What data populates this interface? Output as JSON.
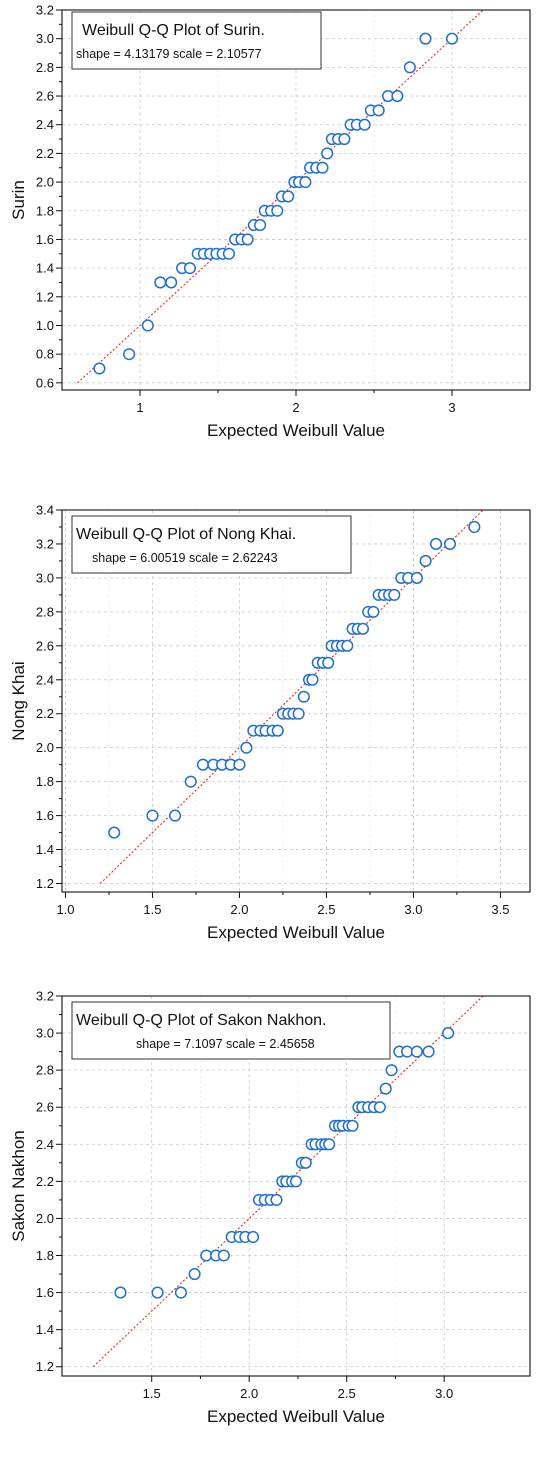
{
  "chart_data": [
    {
      "type": "scatter",
      "title": "Weibull Q-Q Plot of Surin.",
      "subtitle": "shape = 4.13179  scale = 2.10577",
      "xlabel": "Expected Weibull Value",
      "ylabel": "Surin",
      "xlim": [
        0.5,
        3.5
      ],
      "ylim": [
        0.55,
        3.2
      ],
      "xticks": [
        {
          "v": 1,
          "label": "1"
        },
        {
          "v": 2,
          "label": "2"
        },
        {
          "v": 3,
          "label": "3"
        }
      ],
      "yticks": [
        {
          "v": 0.6,
          "label": "0.6"
        },
        {
          "v": 0.8,
          "label": "0.8"
        },
        {
          "v": 1.0,
          "label": "1.0"
        },
        {
          "v": 1.2,
          "label": "1.2"
        },
        {
          "v": 1.4,
          "label": "1.4"
        },
        {
          "v": 1.6,
          "label": "1.6"
        },
        {
          "v": 1.8,
          "label": "1.8"
        },
        {
          "v": 2.0,
          "label": "2.0"
        },
        {
          "v": 2.2,
          "label": "2.2"
        },
        {
          "v": 2.4,
          "label": "2.4"
        },
        {
          "v": 2.6,
          "label": "2.6"
        },
        {
          "v": 2.8,
          "label": "2.8"
        },
        {
          "v": 3.0,
          "label": "3.0"
        },
        {
          "v": 3.2,
          "label": "3.2"
        }
      ],
      "reference_line": [
        [
          0.6,
          0.6
        ],
        [
          3.2,
          3.2
        ]
      ],
      "grid": true,
      "legend": "top-left",
      "x": [
        0.74,
        0.93,
        1.05,
        1.13,
        1.2,
        1.27,
        1.32,
        1.37,
        1.41,
        1.45,
        1.49,
        1.53,
        1.57,
        1.61,
        1.65,
        1.69,
        1.73,
        1.77,
        1.8,
        1.84,
        1.88,
        1.91,
        1.95,
        1.99,
        2.02,
        2.06,
        2.09,
        2.13,
        2.17,
        2.2,
        2.23,
        2.27,
        2.31,
        2.35,
        2.39,
        2.44,
        2.48,
        2.53,
        2.59,
        2.65,
        2.73,
        2.83,
        3.0
      ],
      "y": [
        0.7,
        0.8,
        1.0,
        1.3,
        1.3,
        1.4,
        1.4,
        1.5,
        1.5,
        1.5,
        1.5,
        1.5,
        1.5,
        1.6,
        1.6,
        1.6,
        1.7,
        1.7,
        1.8,
        1.8,
        1.8,
        1.9,
        1.9,
        2.0,
        2.0,
        2.0,
        2.1,
        2.1,
        2.1,
        2.2,
        2.3,
        2.3,
        2.3,
        2.4,
        2.4,
        2.4,
        2.5,
        2.5,
        2.6,
        2.6,
        2.8,
        3.0,
        3.0
      ]
    },
    {
      "type": "scatter",
      "title": "Weibull Q-Q Plot of Nong Khai.",
      "subtitle": "shape = 6.00519  scale = 2.62243",
      "xlabel": "Expected Weibull Value",
      "ylabel": "Nong Khai",
      "xlim": [
        0.98,
        3.67
      ],
      "ylim": [
        1.15,
        3.4
      ],
      "xticks": [
        {
          "v": 1.0,
          "label": "1.0"
        },
        {
          "v": 1.5,
          "label": "1.5"
        },
        {
          "v": 2.0,
          "label": "2.0"
        },
        {
          "v": 2.5,
          "label": "2.5"
        },
        {
          "v": 3.0,
          "label": "3.0"
        },
        {
          "v": 3.5,
          "label": "3.5"
        }
      ],
      "yticks": [
        {
          "v": 1.2,
          "label": "1.2"
        },
        {
          "v": 1.4,
          "label": "1.4"
        },
        {
          "v": 1.6,
          "label": "1.6"
        },
        {
          "v": 1.8,
          "label": "1.8"
        },
        {
          "v": 2.0,
          "label": "2.0"
        },
        {
          "v": 2.2,
          "label": "2.2"
        },
        {
          "v": 2.4,
          "label": "2.4"
        },
        {
          "v": 2.6,
          "label": "2.6"
        },
        {
          "v": 2.8,
          "label": "2.8"
        },
        {
          "v": 3.0,
          "label": "3.0"
        },
        {
          "v": 3.2,
          "label": "3.2"
        },
        {
          "v": 3.4,
          "label": "3.4"
        }
      ],
      "reference_line": [
        [
          1.2,
          1.2
        ],
        [
          3.4,
          3.4
        ]
      ],
      "grid": true,
      "legend": "top-left",
      "x": [
        1.28,
        1.5,
        1.63,
        1.72,
        1.79,
        1.85,
        1.9,
        1.95,
        2.0,
        2.04,
        2.08,
        2.12,
        2.15,
        2.19,
        2.22,
        2.25,
        2.28,
        2.31,
        2.34,
        2.37,
        2.4,
        2.42,
        2.45,
        2.48,
        2.51,
        2.53,
        2.56,
        2.59,
        2.62,
        2.65,
        2.68,
        2.71,
        2.74,
        2.77,
        2.8,
        2.83,
        2.86,
        2.89,
        2.93,
        2.97,
        3.02,
        3.07,
        3.13,
        3.21,
        3.35
      ],
      "y": [
        1.5,
        1.6,
        1.6,
        1.8,
        1.9,
        1.9,
        1.9,
        1.9,
        1.9,
        2.0,
        2.1,
        2.1,
        2.1,
        2.1,
        2.1,
        2.2,
        2.2,
        2.2,
        2.2,
        2.3,
        2.4,
        2.4,
        2.5,
        2.5,
        2.5,
        2.6,
        2.6,
        2.6,
        2.6,
        2.7,
        2.7,
        2.7,
        2.8,
        2.8,
        2.9,
        2.9,
        2.9,
        2.9,
        3.0,
        3.0,
        3.0,
        3.1,
        3.2,
        3.2,
        3.3
      ]
    },
    {
      "type": "scatter",
      "title": "Weibull Q-Q Plot of Sakon Nakhon.",
      "subtitle": "shape = 7.1097  scale = 2.45658",
      "xlabel": "Expected Weibull Value",
      "ylabel": "Sakon Nakhon",
      "xlim": [
        1.04,
        3.44
      ],
      "ylim": [
        1.15,
        3.2
      ],
      "xticks": [
        {
          "v": 1.5,
          "label": "1.5"
        },
        {
          "v": 2.0,
          "label": "2.0"
        },
        {
          "v": 2.5,
          "label": "2.5"
        },
        {
          "v": 3.0,
          "label": "3.0"
        }
      ],
      "yticks": [
        {
          "v": 1.2,
          "label": "1.2"
        },
        {
          "v": 1.4,
          "label": "1.4"
        },
        {
          "v": 1.6,
          "label": "1.6"
        },
        {
          "v": 1.8,
          "label": "1.8"
        },
        {
          "v": 2.0,
          "label": "2.0"
        },
        {
          "v": 2.2,
          "label": "2.2"
        },
        {
          "v": 2.4,
          "label": "2.4"
        },
        {
          "v": 2.6,
          "label": "2.6"
        },
        {
          "v": 2.8,
          "label": "2.8"
        },
        {
          "v": 3.0,
          "label": "3.0"
        },
        {
          "v": 3.2,
          "label": "3.2"
        }
      ],
      "reference_line": [
        [
          1.2,
          1.2
        ],
        [
          3.2,
          3.2
        ]
      ],
      "grid": true,
      "legend": "top-left",
      "x": [
        1.34,
        1.53,
        1.65,
        1.72,
        1.78,
        1.83,
        1.87,
        1.91,
        1.95,
        1.98,
        2.02,
        2.05,
        2.08,
        2.11,
        2.14,
        2.17,
        2.19,
        2.22,
        2.24,
        2.27,
        2.29,
        2.32,
        2.34,
        2.37,
        2.39,
        2.41,
        2.44,
        2.46,
        2.48,
        2.51,
        2.53,
        2.56,
        2.58,
        2.61,
        2.64,
        2.67,
        2.7,
        2.73,
        2.77,
        2.81,
        2.86,
        2.92,
        3.02
      ],
      "y": [
        1.6,
        1.6,
        1.6,
        1.7,
        1.8,
        1.8,
        1.8,
        1.9,
        1.9,
        1.9,
        1.9,
        2.1,
        2.1,
        2.1,
        2.1,
        2.2,
        2.2,
        2.2,
        2.2,
        2.3,
        2.3,
        2.4,
        2.4,
        2.4,
        2.4,
        2.4,
        2.5,
        2.5,
        2.5,
        2.5,
        2.5,
        2.6,
        2.6,
        2.6,
        2.6,
        2.6,
        2.7,
        2.8,
        2.9,
        2.9,
        2.9,
        2.9,
        3.0
      ]
    }
  ],
  "colors": {
    "marker": "#1f6fd1",
    "reference_line": "#e8291c",
    "grid": "#c8c8c8",
    "axis": "#111111"
  }
}
